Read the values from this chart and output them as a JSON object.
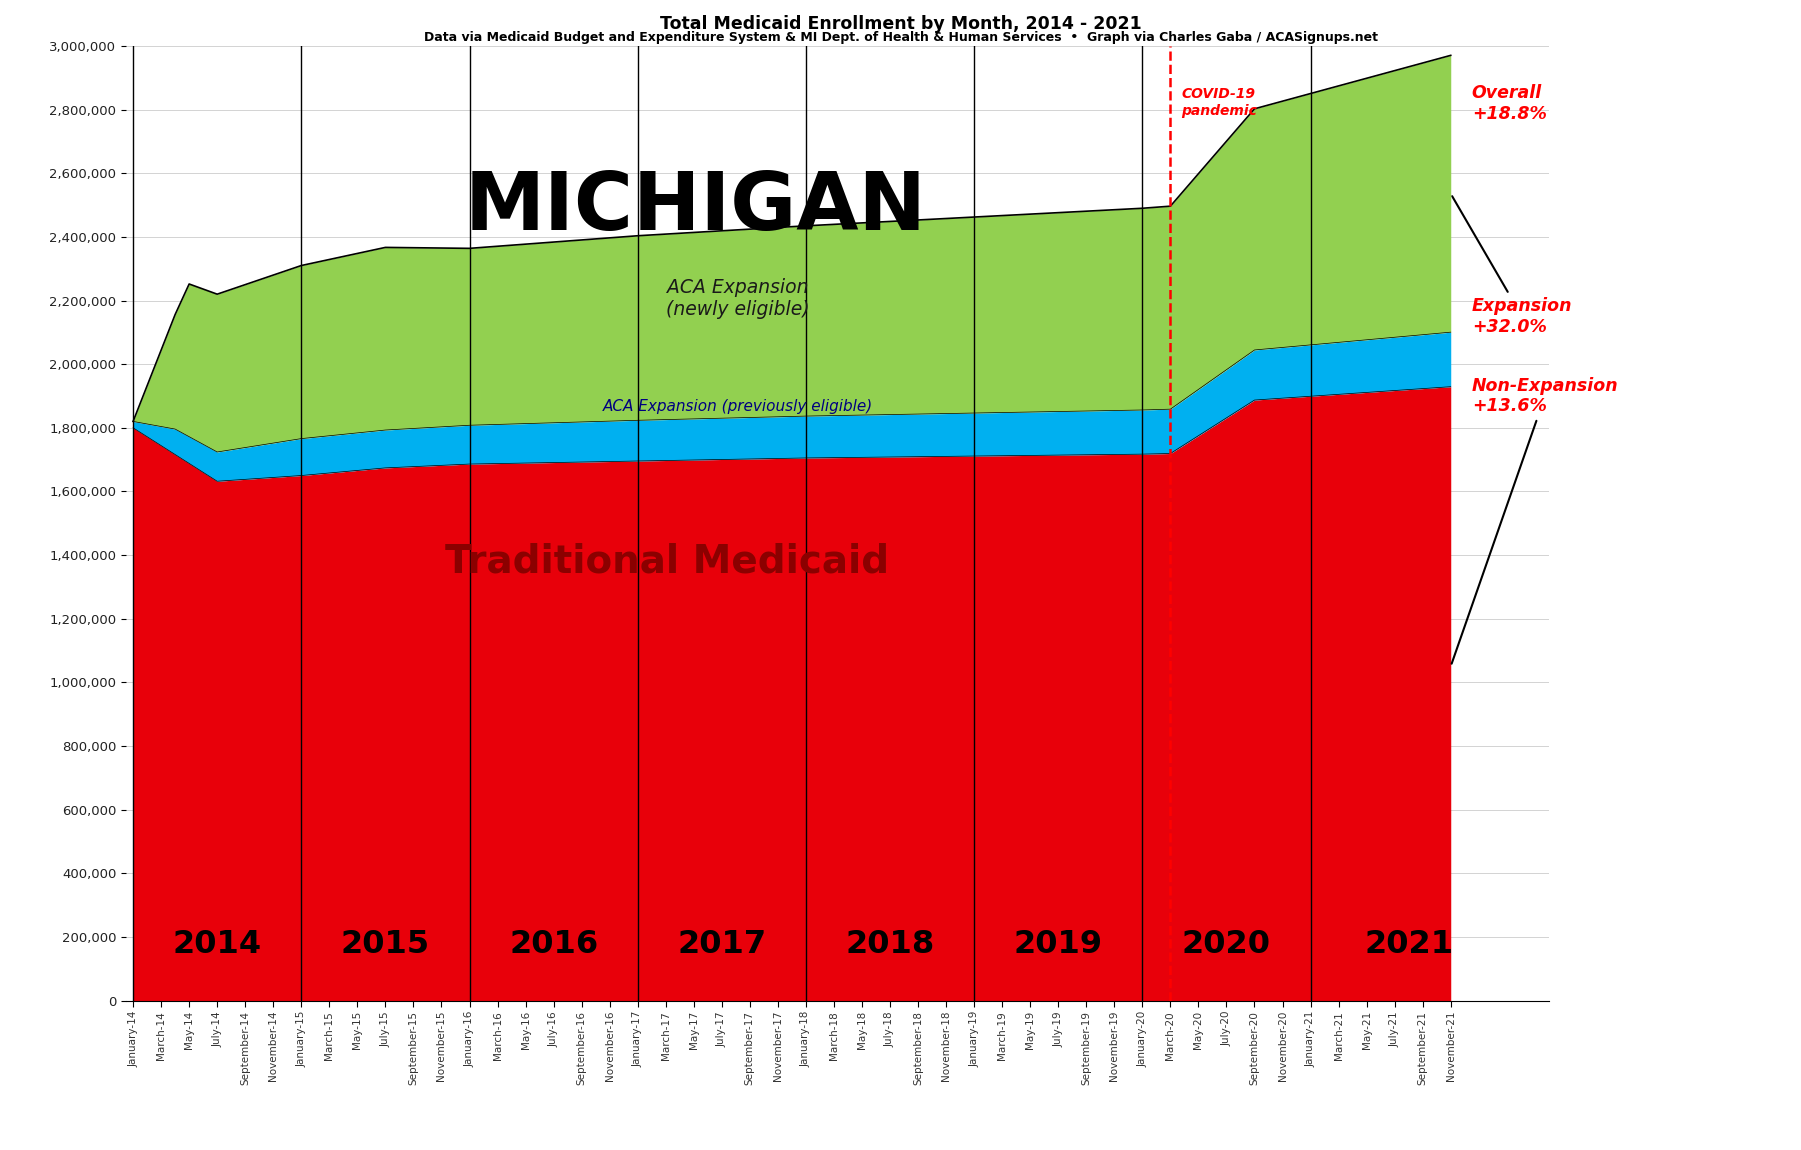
{
  "title1": "Total Medicaid Enrollment by Month, 2014 - 2021",
  "title2": "Data via Medicaid Budget and Expenditure System & MI Dept. of Health & Human Services  •  Graph via Charles Gaba / ACASignups.net",
  "state_label": "MICHIGAN",
  "covid_label": "COVID-19\npandemic",
  "traditional_label": "Traditional Medicaid",
  "expansion_new_label": "ACA Expansion\n(newly eligible)",
  "expansion_prev_label": "ACA Expansion (previously eligible)",
  "overall_label": "Overall\n+18.8%",
  "expansion_pct_label": "Expansion\n+32.0%",
  "nonexpansion_label": "Non-Expansion\n+13.6%",
  "bg_color": "#ffffff",
  "traditional_color": "#e8000a",
  "expansion_prev_color": "#00b0f0",
  "expansion_new_color": "#92d050",
  "ylim": [
    0,
    3000000
  ],
  "yticks": [
    0,
    200000,
    400000,
    600000,
    800000,
    1000000,
    1200000,
    1400000,
    1600000,
    1800000,
    2000000,
    2200000,
    2400000,
    2600000,
    2800000,
    3000000
  ]
}
